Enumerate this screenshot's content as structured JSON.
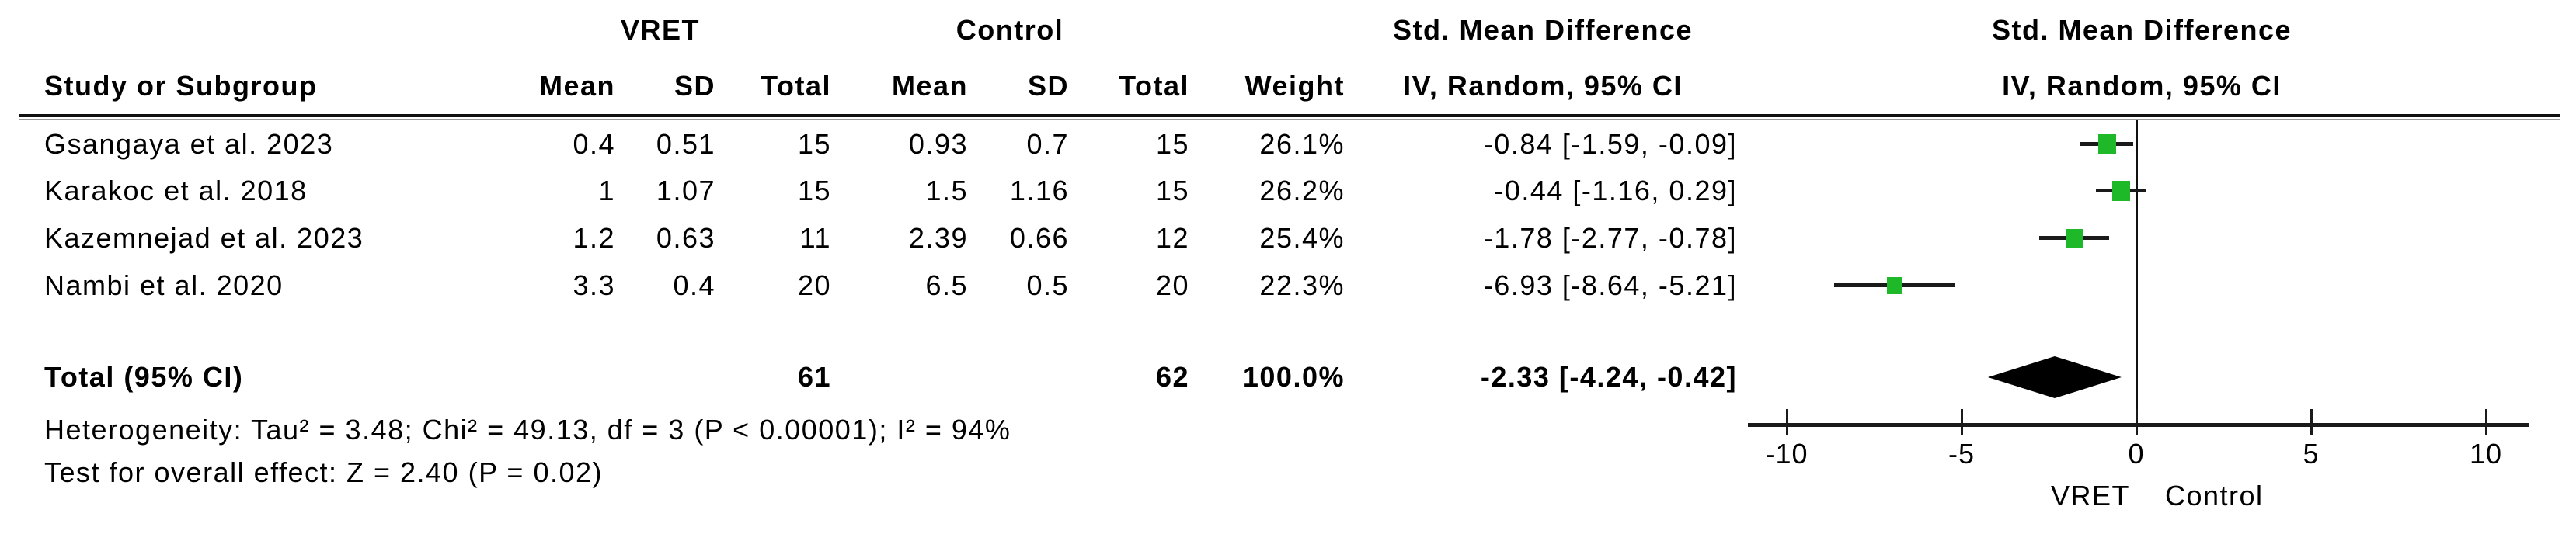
{
  "header": {
    "group1": "VRET",
    "group2": "Control",
    "col_study": "Study or Subgroup",
    "col_mean": "Mean",
    "col_sd": "SD",
    "col_total": "Total",
    "col_weight": "Weight",
    "effect_title": "Std. Mean Difference",
    "effect_subtitle": "IV, Random, 95% CI",
    "plot_title": "Std. Mean Difference",
    "plot_subtitle": "IV, Random, 95% CI"
  },
  "footer": {
    "total_label": "Total (95% CI)",
    "total_n1": "61",
    "total_n2": "62",
    "total_weight": "100.0%",
    "total_ci": "-2.33 [-4.24, -0.42]",
    "heterogeneity": "Heterogeneity: Tau² = 3.48; Chi² = 49.13, df = 3 (P < 0.00001); I² = 94%",
    "overall_effect": "Test for overall effect: Z = 2.40 (P = 0.02)"
  },
  "axis": {
    "tick_labels": [
      "-10",
      "-5",
      "0",
      "5",
      "10"
    ],
    "label_left": "VRET",
    "label_right": "Control"
  },
  "chart_data": {
    "type": "forest",
    "title": "Std. Mean Difference",
    "subtitle": "IV, Random, 95% CI",
    "xlim": [
      -10,
      10
    ],
    "ticks": [
      -10,
      -5,
      0,
      5,
      10
    ],
    "marker_color": "#1eb928",
    "studies": [
      {
        "name": "Gsangaya et al. 2023",
        "mean1": "0.4",
        "sd1": "0.51",
        "n1": "15",
        "mean2": "0.93",
        "sd2": "0.7",
        "n2": "15",
        "weight": "26.1%",
        "ci_text": "-0.84 [-1.59, -0.09]",
        "smd": -0.84,
        "lo": -1.59,
        "hi": -0.09,
        "weight_pct": 26.1
      },
      {
        "name": "Karakoc et al. 2018",
        "mean1": "1",
        "sd1": "1.07",
        "n1": "15",
        "mean2": "1.5",
        "sd2": "1.16",
        "n2": "15",
        "weight": "26.2%",
        "ci_text": "-0.44 [-1.16, 0.29]",
        "smd": -0.44,
        "lo": -1.16,
        "hi": 0.29,
        "weight_pct": 26.2
      },
      {
        "name": "Kazemnejad et al. 2023",
        "mean1": "1.2",
        "sd1": "0.63",
        "n1": "11",
        "mean2": "2.39",
        "sd2": "0.66",
        "n2": "12",
        "weight": "25.4%",
        "ci_text": "-1.78 [-2.77, -0.78]",
        "smd": -1.78,
        "lo": -2.77,
        "hi": -0.78,
        "weight_pct": 25.4
      },
      {
        "name": "Nambi et al. 2020",
        "mean1": "3.3",
        "sd1": "0.4",
        "n1": "20",
        "mean2": "6.5",
        "sd2": "0.5",
        "n2": "20",
        "weight": "22.3%",
        "ci_text": "-6.93 [-8.64, -5.21]",
        "smd": -6.93,
        "lo": -8.64,
        "hi": -5.21,
        "weight_pct": 22.3
      }
    ],
    "total": {
      "smd": -2.33,
      "lo": -4.24,
      "hi": -0.42
    }
  }
}
